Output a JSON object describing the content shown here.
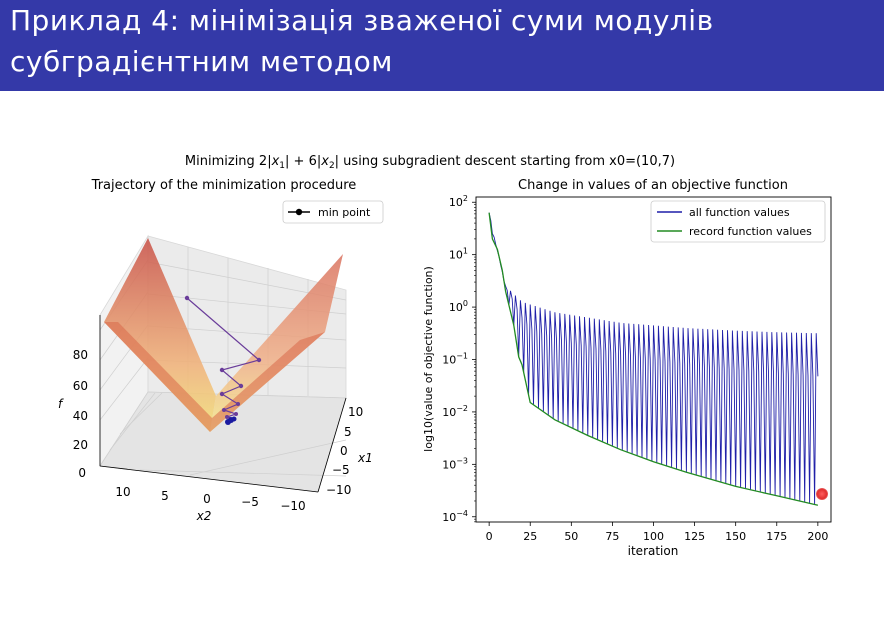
{
  "slide": {
    "title_line1": "Приклад 4: мінімізація зваженої суми модулів",
    "title_line2": "субградієнтним методом",
    "header_color": "#3439a8"
  },
  "figure": {
    "suptitle": "Minimizing 2|x",
    "suptitle_parts": [
      "Minimizing 2|",
      "x",
      "1",
      "| + 6|",
      "x",
      "2",
      "| using subgradient descent starting from x0=(10,7)"
    ]
  },
  "chart_data": [
    {
      "type": "surface3d",
      "title": "Trajectory of the minimization procedure",
      "xlabel": "x1",
      "ylabel": "x2",
      "zlabel": "f",
      "x1_ticks": [
        "10",
        "5",
        "0",
        "−5",
        "−10"
      ],
      "x2_ticks": [
        "10",
        "5",
        "0",
        "−5",
        "−10"
      ],
      "z_ticks": [
        "0",
        "20",
        "40",
        "60",
        "80"
      ],
      "legend": [
        "min point"
      ],
      "start_point": [
        10,
        7
      ],
      "function": "2|x1| + 6|x2|",
      "colors": {
        "surface": "#e8825e",
        "path": "#6a3d9a",
        "min": "#1a1aa0"
      }
    },
    {
      "type": "line",
      "title": "Change in values of an objective function",
      "xlabel": "iteration",
      "ylabel": "log10(value of objective function)",
      "yscale": "log",
      "xlim": [
        -8,
        208
      ],
      "ylim_log10": [
        -4.1,
        2.1
      ],
      "x_ticks": [
        "0",
        "25",
        "50",
        "75",
        "100",
        "125",
        "150",
        "175",
        "200"
      ],
      "x_tick_values": [
        0,
        25,
        50,
        75,
        100,
        125,
        150,
        175,
        200
      ],
      "y_ticks": [
        {
          "base": "10",
          "exp": "2",
          "value": 2
        },
        {
          "base": "10",
          "exp": "1",
          "value": 1
        },
        {
          "base": "10",
          "exp": "0",
          "value": 0
        },
        {
          "base": "10",
          "exp": "−1",
          "value": -1
        },
        {
          "base": "10",
          "exp": "−2",
          "value": -2
        },
        {
          "base": "10",
          "exp": "−3",
          "value": -3
        },
        {
          "base": "10",
          "exp": "−4",
          "value": -4
        }
      ],
      "legend": [
        "all function values",
        "record function values"
      ],
      "series": [
        {
          "name": "all function values",
          "color": "#1f1fa8",
          "oscillation": {
            "period": 3,
            "high_log10": [
              1.2,
              0.4,
              0.1,
              -0.1,
              -0.2,
              -0.3,
              -0.35,
              -0.4,
              -0.45,
              -0.48,
              -0.5
            ],
            "high_x": [
              4,
              10,
              20,
              40,
              60,
              80,
              100,
              120,
              150,
              175,
              200
            ]
          }
        },
        {
          "name": "record function values",
          "color": "#228b22",
          "x": [
            0,
            2,
            5,
            8,
            10,
            15,
            18,
            20,
            25,
            40,
            60,
            80,
            100,
            120,
            150,
            175,
            200
          ],
          "log10": [
            1.8,
            1.3,
            1.1,
            0.7,
            0.3,
            -0.35,
            -0.95,
            -1.1,
            -1.82,
            -2.15,
            -2.45,
            -2.72,
            -2.95,
            -3.15,
            -3.42,
            -3.6,
            -3.78
          ]
        }
      ]
    }
  ]
}
